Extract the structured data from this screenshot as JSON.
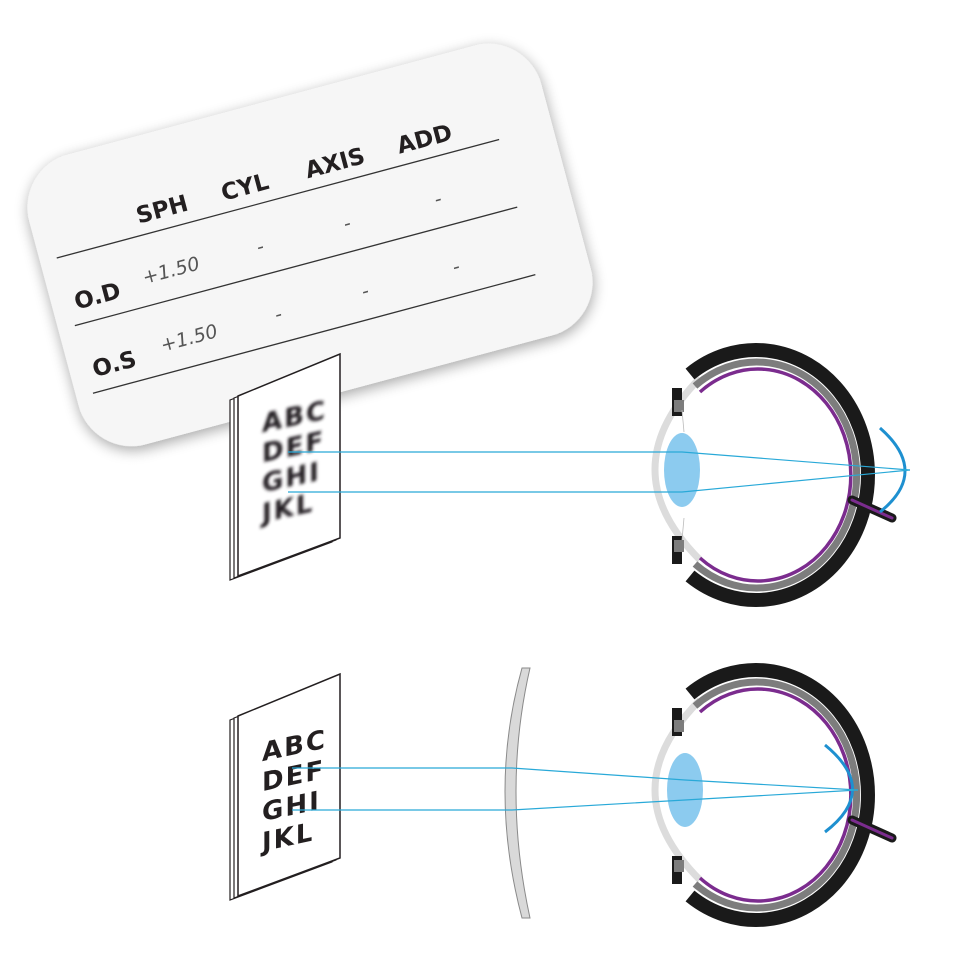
{
  "prescription": {
    "columns": [
      "SPH",
      "CYL",
      "AXIS",
      "ADD"
    ],
    "rows": [
      {
        "eye": "O.D",
        "values": [
          "+1.50",
          "-",
          "-",
          "-"
        ]
      },
      {
        "eye": "O.S",
        "values": [
          "+1.50",
          "-",
          "-",
          "-"
        ]
      }
    ]
  },
  "eye_chart": {
    "lines": [
      "ABC",
      "DEF",
      "GHI",
      "JKL"
    ]
  },
  "colors": {
    "card": "#f6f6f6",
    "ray": "#29a9d8",
    "lens": "#8ccbef",
    "sclera": "#1a1a1a",
    "choroid": "#7d7d7d",
    "retina": "#7b2c8e",
    "focus_arc": "#1e90d0",
    "corrective_lens": "#d9d9d9"
  },
  "icons": [
    "prescription-card",
    "reading-chart",
    "eye-cross-section",
    "convex-lens"
  ]
}
